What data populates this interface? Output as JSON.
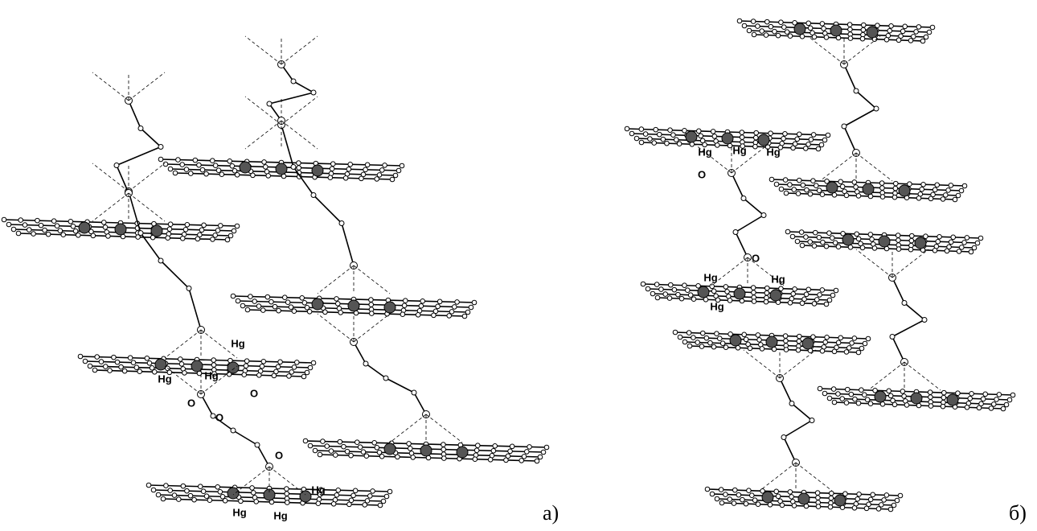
{
  "panels": [
    {
      "label": "a)",
      "atom_labels": [
        "Hg",
        "Hg",
        "Hg",
        "O",
        "O",
        "O",
        "O",
        "Hg",
        "Hg",
        "Hg"
      ]
    },
    {
      "label": "б)",
      "atom_labels": [
        "Hg",
        "Hg",
        "Hg",
        "O",
        "O",
        "Hg",
        "Hg",
        "Hg"
      ]
    }
  ]
}
